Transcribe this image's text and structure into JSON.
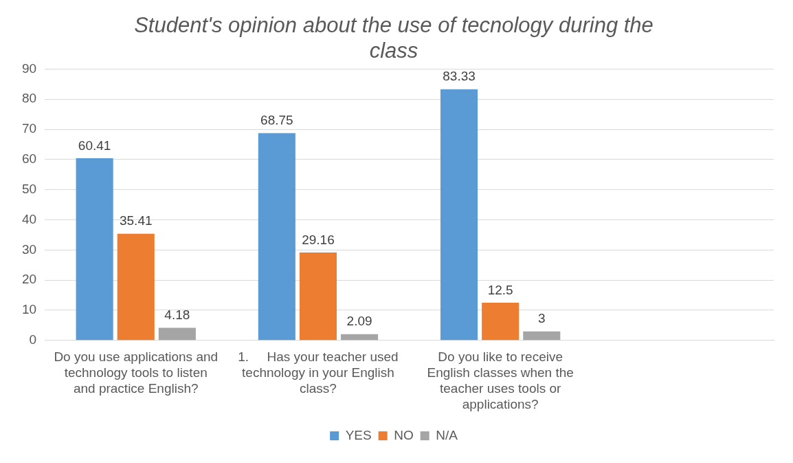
{
  "chart_data": {
    "type": "bar",
    "title": "Student's opinion about the use of tecnology during the class",
    "categories": [
      "Do you use applications and technology tools to listen and practice English?",
      "1.     Has your teacher used technology in your English class?",
      "Do you like to receive English classes when the teacher uses tools or applications?",
      null
    ],
    "series": [
      {
        "name": "YES",
        "color": "#5b9bd5",
        "values": [
          60.41,
          68.75,
          83.33,
          null
        ]
      },
      {
        "name": "NO",
        "color": "#ed7d31",
        "values": [
          35.41,
          29.16,
          12.5,
          null
        ]
      },
      {
        "name": "N/A",
        "color": "#a5a5a5",
        "values": [
          4.18,
          2.09,
          3,
          null
        ]
      }
    ],
    "ylim": [
      0,
      90
    ],
    "yticks": [
      0,
      10,
      20,
      30,
      40,
      50,
      60,
      70,
      80,
      90
    ],
    "grid": "y",
    "legend": "bottom",
    "data_labels": true
  }
}
